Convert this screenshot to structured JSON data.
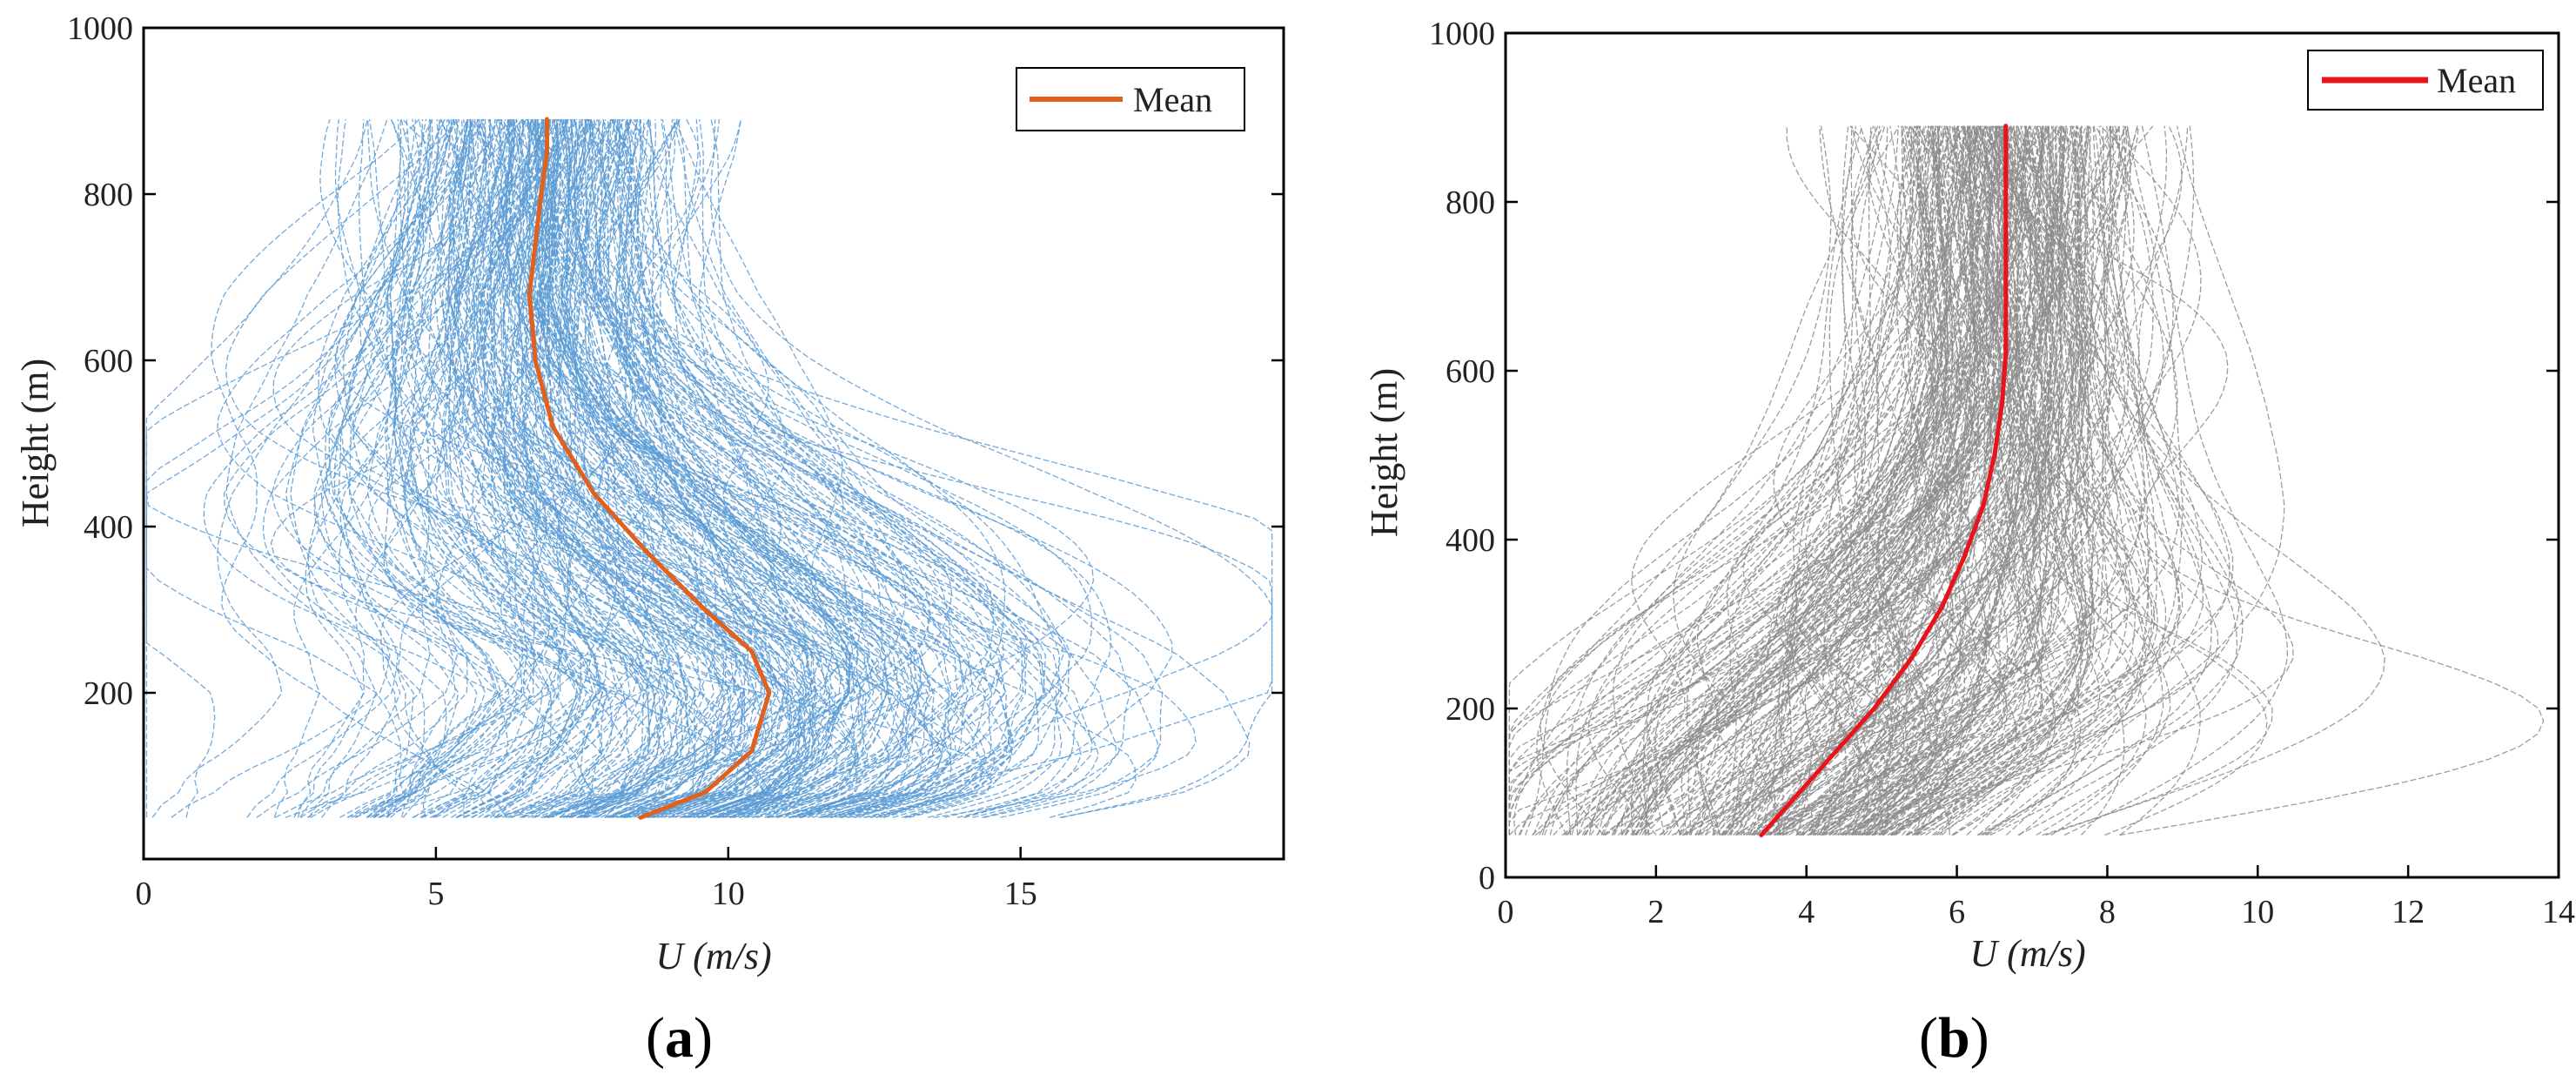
{
  "chart_data": [
    {
      "id": "a",
      "type": "line",
      "panel_label": "a",
      "xlabel_symbol": "U",
      "xlabel_unit": "(m/s)",
      "ylabel": "Height (m)",
      "xlim": [
        0,
        19.5
      ],
      "ylim": [
        0,
        1000
      ],
      "xticks": [
        0,
        5,
        10,
        15
      ],
      "yticks": [
        200,
        400,
        600,
        800,
        1000
      ],
      "grid": false,
      "legend": {
        "position": "top-right",
        "entries": [
          "Mean"
        ]
      },
      "colors": {
        "ensemble": "#5b9bd5",
        "mean": "#e0601c"
      },
      "ensemble": {
        "name": "Profiles",
        "count": 300,
        "height_range": [
          50,
          890
        ]
      },
      "series": [
        {
          "name": "Mean",
          "x": [
            8.5,
            9.6,
            10.4,
            10.7,
            10.4,
            9.6,
            8.6,
            7.7,
            7.0,
            6.7,
            6.6,
            6.7,
            6.8,
            6.9,
            6.9
          ],
          "y": [
            50,
            80,
            130,
            200,
            250,
            300,
            370,
            440,
            520,
            600,
            680,
            740,
            800,
            850,
            890
          ]
        }
      ]
    },
    {
      "id": "b",
      "type": "line",
      "panel_label": "b",
      "xlabel_symbol": "U",
      "xlabel_unit": "(m/s)",
      "ylabel": "Height (m)",
      "xlim": [
        0,
        14
      ],
      "ylim": [
        0,
        1000
      ],
      "xticks": [
        0,
        2,
        4,
        6,
        8,
        10,
        12,
        14
      ],
      "yticks": [
        0,
        200,
        400,
        600,
        800,
        1000
      ],
      "grid": false,
      "legend": {
        "position": "top-right",
        "entries": [
          "Mean"
        ]
      },
      "colors": {
        "ensemble": "#8c8c8c",
        "mean": "#e8141c"
      },
      "ensemble": {
        "name": "Profiles",
        "count": 320,
        "height_range": [
          50,
          890
        ]
      },
      "series": [
        {
          "name": "Mean",
          "x": [
            3.4,
            3.9,
            4.4,
            4.9,
            5.4,
            5.8,
            6.1,
            6.35,
            6.5,
            6.6,
            6.65,
            6.65,
            6.65,
            6.65
          ],
          "y": [
            50,
            100,
            150,
            200,
            260,
            320,
            380,
            440,
            500,
            560,
            620,
            700,
            800,
            890
          ]
        }
      ]
    }
  ]
}
